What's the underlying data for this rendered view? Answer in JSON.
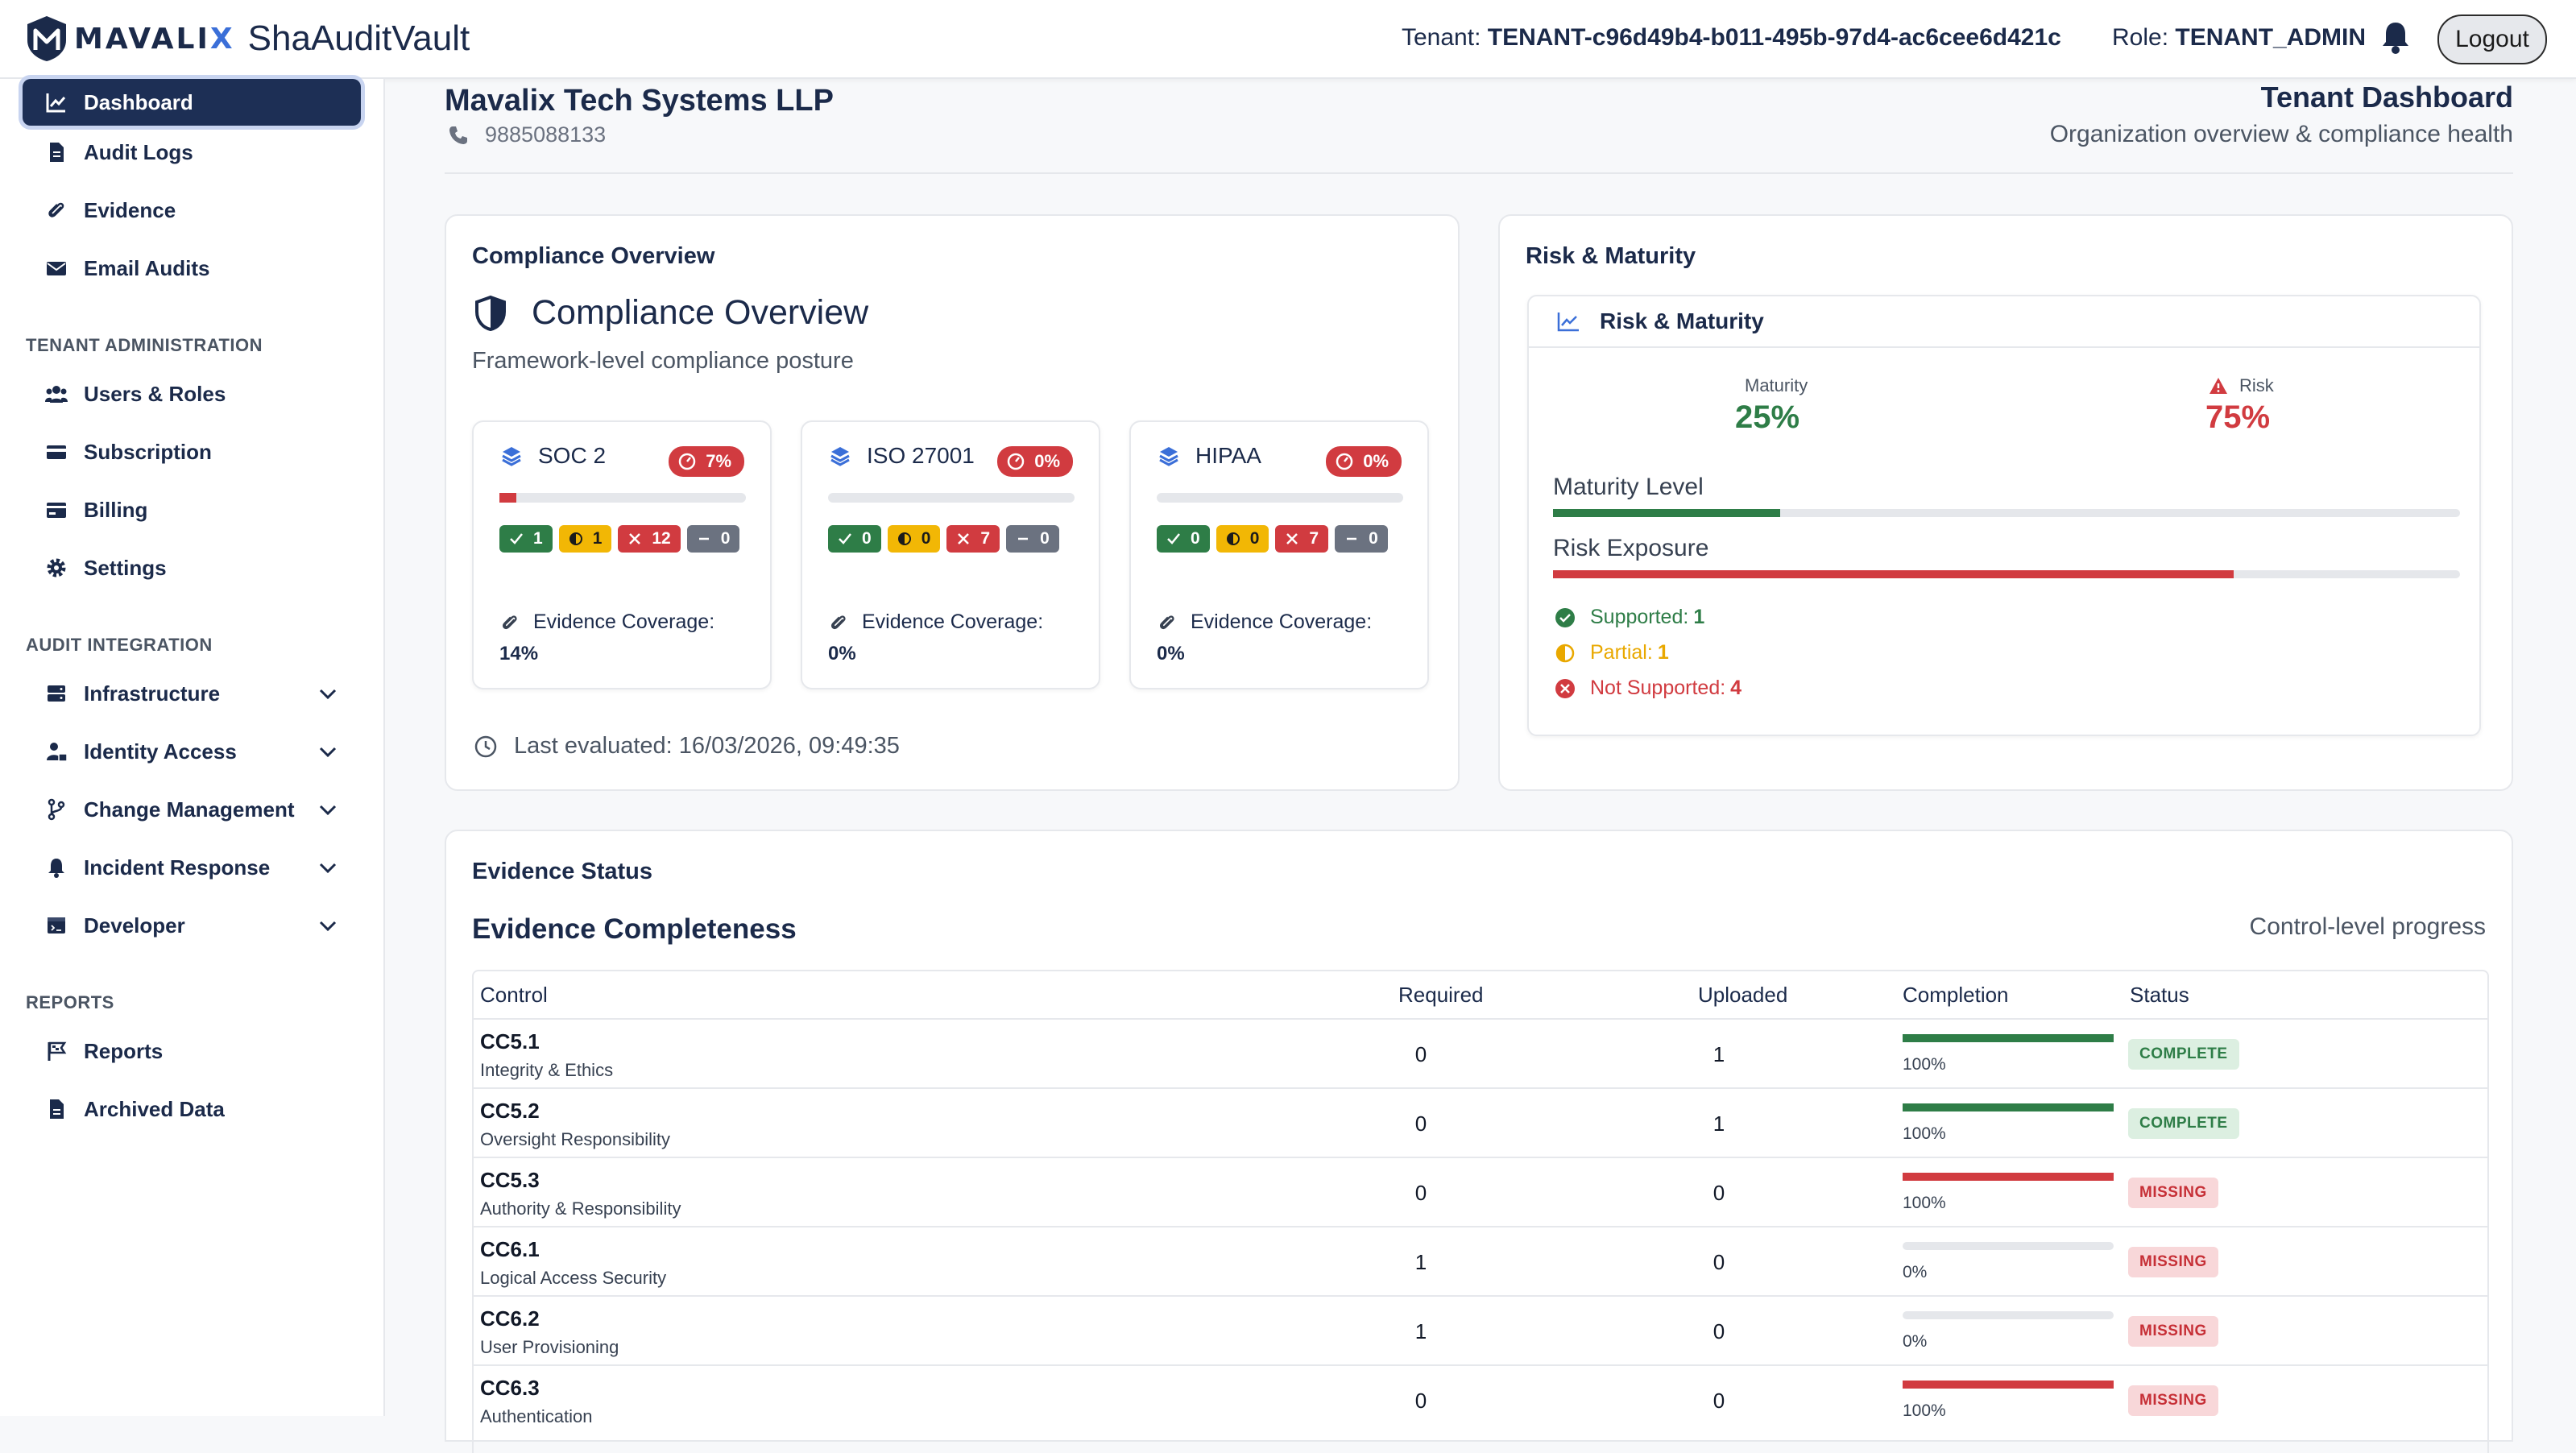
{
  "header": {
    "brand": "MAVALIX",
    "app_name": "ShaAuditVault",
    "tenant_label": "Tenant:",
    "tenant_id": "TENANT-c96d49b4-b011-495b-97d4-ac6cee6d421c",
    "role_label": "Role:",
    "role_value": "TENANT_ADMIN",
    "logout_label": "Logout"
  },
  "sidebar": {
    "items_top": [
      {
        "label": "Dashboard",
        "icon": "chart-line-icon",
        "active": true
      },
      {
        "label": "Audit Logs",
        "icon": "document-icon"
      },
      {
        "label": "Evidence",
        "icon": "paperclip-icon"
      },
      {
        "label": "Email Audits",
        "icon": "envelope-icon"
      }
    ],
    "section_admin": "TENANT ADMINISTRATION",
    "items_admin": [
      {
        "label": "Users & Roles",
        "icon": "users-icon"
      },
      {
        "label": "Subscription",
        "icon": "card-icon"
      },
      {
        "label": "Billing",
        "icon": "billing-icon"
      },
      {
        "label": "Settings",
        "icon": "gear-icon"
      }
    ],
    "section_integration": "AUDIT INTEGRATION",
    "items_integration": [
      {
        "label": "Infrastructure",
        "icon": "server-icon"
      },
      {
        "label": "Identity Access",
        "icon": "user-lock-icon"
      },
      {
        "label": "Change Management",
        "icon": "branch-icon"
      },
      {
        "label": "Incident Response",
        "icon": "bell-icon"
      },
      {
        "label": "Developer",
        "icon": "dev-icon"
      }
    ],
    "section_reports": "REPORTS",
    "items_reports": [
      {
        "label": "Reports",
        "icon": "flag-icon"
      },
      {
        "label": "Archived Data",
        "icon": "archive-icon"
      }
    ]
  },
  "org": {
    "name": "Mavalix Tech Systems LLP",
    "phone": "9885088133"
  },
  "page": {
    "title": "Tenant Dashboard",
    "subtitle": "Organization overview & compliance health"
  },
  "compliance": {
    "card_title": "Compliance Overview",
    "heading": "Compliance Overview",
    "subheading": "Framework-level compliance posture",
    "frameworks": [
      {
        "name": "SOC 2",
        "percent_label": "7%",
        "percent": 7,
        "passed": "1",
        "partial": "1",
        "failed": "12",
        "na": "0",
        "coverage_label": "Evidence Coverage:",
        "coverage": "14%"
      },
      {
        "name": "ISO 27001",
        "percent_label": "0%",
        "percent": 0,
        "passed": "0",
        "partial": "0",
        "failed": "7",
        "na": "0",
        "coverage_label": "Evidence Coverage:",
        "coverage": "0%"
      },
      {
        "name": "HIPAA",
        "percent_label": "0%",
        "percent": 0,
        "passed": "0",
        "partial": "0",
        "failed": "7",
        "na": "0",
        "coverage_label": "Evidence Coverage:",
        "coverage": "0%"
      }
    ],
    "last_evaluated": "Last evaluated: 16/03/2026, 09:49:35"
  },
  "risk": {
    "card_title": "Risk & Maturity",
    "inner_title": "Risk & Maturity",
    "maturity_label": "Maturity",
    "maturity_value": "25%",
    "maturity_fraction": 0.25,
    "risk_label": "Risk",
    "risk_value": "75%",
    "risk_fraction": 0.75,
    "maturity_level_label": "Maturity Level",
    "risk_exposure_label": "Risk Exposure",
    "supported_label": "Supported:",
    "supported_count": "1",
    "partial_label": "Partial:",
    "partial_count": "1",
    "not_supported_label": "Not Supported:",
    "not_supported_count": "4",
    "colors": {
      "green": "#2e7d47",
      "red": "#d13b40",
      "yellow": "#e9a800"
    }
  },
  "evidence": {
    "card_title": "Evidence Status",
    "heading": "Evidence Completeness",
    "right_label": "Control-level progress",
    "columns": {
      "control": "Control",
      "required": "Required",
      "uploaded": "Uploaded",
      "completion": "Completion",
      "status": "Status"
    },
    "rows": [
      {
        "code": "CC5.1",
        "name": "Integrity & Ethics",
        "required": "0",
        "uploaded": "1",
        "completion_label": "100%",
        "completion": 1.0,
        "bar": "green",
        "status": "COMPLETE"
      },
      {
        "code": "CC5.2",
        "name": "Oversight Responsibility",
        "required": "0",
        "uploaded": "1",
        "completion_label": "100%",
        "completion": 1.0,
        "bar": "green",
        "status": "COMPLETE"
      },
      {
        "code": "CC5.3",
        "name": "Authority & Responsibility",
        "required": "0",
        "uploaded": "0",
        "completion_label": "100%",
        "completion": 1.0,
        "bar": "red",
        "status": "MISSING"
      },
      {
        "code": "CC6.1",
        "name": "Logical Access Security",
        "required": "1",
        "uploaded": "0",
        "completion_label": "0%",
        "completion": 0,
        "bar": "red",
        "status": "MISSING"
      },
      {
        "code": "CC6.2",
        "name": "User Provisioning",
        "required": "1",
        "uploaded": "0",
        "completion_label": "0%",
        "completion": 0,
        "bar": "red",
        "status": "MISSING"
      },
      {
        "code": "CC6.3",
        "name": "Authentication",
        "required": "0",
        "uploaded": "0",
        "completion_label": "100%",
        "completion": 1.0,
        "bar": "red",
        "status": "MISSING"
      }
    ]
  }
}
